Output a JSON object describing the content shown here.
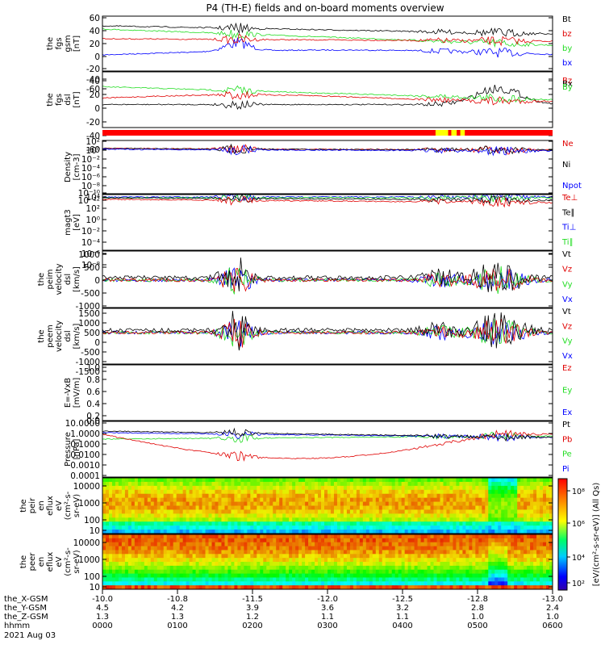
{
  "title": "P4 (TH-E) fields and on-board moments overview",
  "colors": {
    "black": "#000000",
    "red": "#e00000",
    "green": "#22dd22",
    "blue": "#0000ff",
    "yellow": "#ffff00",
    "mode_bar": "#ff0000"
  },
  "panels": [
    {
      "id": "fgs-gsm",
      "ylabel": [
        "the",
        "fgs",
        "gsm",
        "[nT]"
      ],
      "ticks": [
        "60",
        "40",
        "20",
        "0",
        "-20",
        "-40",
        "-60"
      ],
      "legend": [
        {
          "text": "Bt",
          "color": "black"
        },
        {
          "text": "bz",
          "color": "red"
        },
        {
          "text": "by",
          "color": "green"
        },
        {
          "text": "bx",
          "color": "blue"
        }
      ]
    },
    {
      "id": "fgs-dsl",
      "ylabel": [
        "the",
        "fgs",
        "dsl",
        "[nT]"
      ],
      "ticks": [
        "40",
        "20",
        "0",
        "-20",
        "-40",
        "-60"
      ],
      "legend": [
        {
          "text": "Bz",
          "color": "red"
        },
        {
          "text": "Bx",
          "color": "black"
        },
        {
          "text": "By",
          "color": "green"
        }
      ]
    },
    {
      "id": "density",
      "ylabel": [
        "Density",
        "[cm-3]"
      ],
      "ticks": [
        "10²",
        "10⁰",
        "10⁻²",
        "10⁻⁴",
        "10⁻⁶",
        "10⁻⁸",
        "10⁻¹⁰",
        "10⁻¹²"
      ],
      "legend": [
        {
          "text": "Ne",
          "color": "red"
        },
        {
          "text": "Ni",
          "color": "black"
        },
        {
          "text": "Npot",
          "color": "blue"
        }
      ]
    },
    {
      "id": "temperature",
      "ylabel": [
        "magt3",
        "[eV]"
      ],
      "ticks": [
        "10⁴",
        "10²",
        "10⁰",
        "10⁻²",
        "10⁻⁴",
        "10⁻⁶",
        "10⁻⁸"
      ],
      "legend": [
        {
          "text": "Te⊥",
          "color": "red"
        },
        {
          "text": "Te∥",
          "color": "black"
        },
        {
          "text": "Ti⊥",
          "color": "blue"
        },
        {
          "text": "Ti∥",
          "color": "green"
        }
      ]
    },
    {
      "id": "peim-velocity",
      "ylabel": [
        "the",
        "peim",
        "velocity",
        "dsl",
        "[km/s]"
      ],
      "ticks": [
        "1000",
        "500",
        "0",
        "-500",
        "-1000"
      ],
      "legend": [
        {
          "text": "Vt",
          "color": "black"
        },
        {
          "text": "Vz",
          "color": "red"
        },
        {
          "text": "Vy",
          "color": "green"
        },
        {
          "text": "Vx",
          "color": "blue"
        }
      ]
    },
    {
      "id": "peem-velocity",
      "ylabel": [
        "the",
        "peem",
        "velocity",
        "dsl",
        "[km/s]"
      ],
      "ticks": [
        "1500",
        "1000",
        "500",
        "0",
        "-500",
        "-1000",
        "-1500"
      ],
      "legend": [
        {
          "text": "Vt",
          "color": "black"
        },
        {
          "text": "Vz",
          "color": "red"
        },
        {
          "text": "Vy",
          "color": "green"
        },
        {
          "text": "Vx",
          "color": "blue"
        }
      ]
    },
    {
      "id": "e-field",
      "ylabel": [
        "E=-VxB",
        "[mV/m]"
      ],
      "ticks": [
        "1.0",
        "0.8",
        "0.6",
        "0.4",
        "0.2",
        "0.0"
      ],
      "legend": [
        {
          "text": "Ez",
          "color": "red"
        },
        {
          "text": "Ey",
          "color": "green"
        },
        {
          "text": "Ex",
          "color": "blue"
        }
      ]
    },
    {
      "id": "pressure",
      "ylabel": [
        "Pressure",
        "[nPa]"
      ],
      "ticks": [
        "10.0000",
        "1.0000",
        "0.1000",
        "0.0100",
        "0.0010",
        "0.0001"
      ],
      "legend": [
        {
          "text": "Pt",
          "color": "black"
        },
        {
          "text": "Pb",
          "color": "red"
        },
        {
          "text": "Pe",
          "color": "green"
        },
        {
          "text": "Pi",
          "color": "blue"
        }
      ]
    },
    {
      "id": "peir-spectrogram",
      "ylabel": [
        "the",
        "peir",
        "en",
        "eflux",
        "eV",
        "(cm²-s-",
        "sr-eV)"
      ],
      "ticks": [
        "10000",
        "1000",
        "100",
        "10"
      ]
    },
    {
      "id": "peer-spectrogram",
      "ylabel": [
        "the",
        "peer",
        "en",
        "eflux",
        "eV",
        "(cm²-s-",
        "sr-eV)"
      ],
      "ticks": [
        "10000",
        "1000",
        "100",
        "10"
      ]
    }
  ],
  "colorbar": {
    "ticks": [
      "10⁸",
      "10⁶",
      "10⁴",
      "10²"
    ],
    "label": "[eV/(cm²-s-sr-eV)] (All Qs)"
  },
  "x_axis": {
    "rows": [
      {
        "label": "the_X-GSM",
        "values": [
          "-10.0",
          "-10.8",
          "-11.5",
          "-12.0",
          "-12.5",
          "-12.8",
          "-13.0"
        ]
      },
      {
        "label": "the_Y-GSM",
        "values": [
          "4.5",
          "4.2",
          "3.9",
          "3.6",
          "3.2",
          "2.8",
          "2.4"
        ]
      },
      {
        "label": "the_Z-GSM",
        "values": [
          "1.3",
          "1.3",
          "1.2",
          "1.1",
          "1.1",
          "1.0",
          "1.0"
        ]
      },
      {
        "label": "hhmm",
        "values": [
          "0000",
          "0100",
          "0200",
          "0300",
          "0400",
          "0500",
          "0600"
        ]
      }
    ],
    "date": "2021 Aug 03"
  },
  "chart_data": {
    "type": "line",
    "title": "P4 (TH-E) fields and on-board moments overview",
    "x": [
      "0000",
      "0100",
      "0200",
      "0300",
      "0400",
      "0500",
      "0600"
    ],
    "xlabel": "hhmm",
    "date": "2021 Aug 03",
    "series": [
      {
        "name": "Bt",
        "panel": "fgs-gsm",
        "values": [
          35,
          25,
          30,
          18,
          10,
          15,
          15
        ]
      },
      {
        "name": "bz",
        "panel": "fgs-gsm",
        "values": [
          20,
          8,
          5,
          5,
          5,
          5,
          10
        ]
      },
      {
        "name": "by",
        "panel": "fgs-gsm",
        "values": [
          30,
          10,
          3,
          2,
          0,
          5,
          10
        ]
      },
      {
        "name": "bx",
        "panel": "fgs-gsm",
        "values": [
          -20,
          -25,
          -30,
          -15,
          -5,
          -5,
          10
        ]
      },
      {
        "name": "Bz",
        "panel": "fgs-dsl",
        "values": [
          0,
          10,
          5,
          5,
          10,
          20,
          10
        ]
      },
      {
        "name": "Bx",
        "panel": "fgs-dsl",
        "values": [
          -5,
          -5,
          -20,
          5,
          5,
          20,
          5
        ]
      },
      {
        "name": "By",
        "panel": "fgs-dsl",
        "values": [
          25,
          15,
          5,
          5,
          0,
          5,
          10
        ]
      },
      {
        "name": "Vt",
        "panel": "peim-velocity",
        "values": [
          20,
          50,
          300,
          50,
          30,
          100,
          200
        ]
      },
      {
        "name": "Vt",
        "panel": "peem-velocity",
        "values": [
          50,
          100,
          800,
          300,
          50,
          300,
          700
        ]
      },
      {
        "name": "Pt",
        "panel": "pressure",
        "values": [
          1.0,
          0.8,
          0.5,
          0.4,
          0.3,
          0.3,
          0.4
        ]
      },
      {
        "name": "Pb",
        "panel": "pressure",
        "values": [
          0.5,
          0.3,
          0.1,
          0.01,
          0.005,
          0.05,
          0.2
        ]
      },
      {
        "name": "Pe",
        "panel": "pressure",
        "values": [
          0.3,
          0.3,
          0.2,
          0.2,
          0.2,
          0.2,
          0.2
        ]
      },
      {
        "name": "Pi",
        "panel": "pressure",
        "values": [
          0.8,
          0.6,
          0.5,
          0.4,
          0.3,
          0.25,
          0.2
        ]
      }
    ]
  }
}
